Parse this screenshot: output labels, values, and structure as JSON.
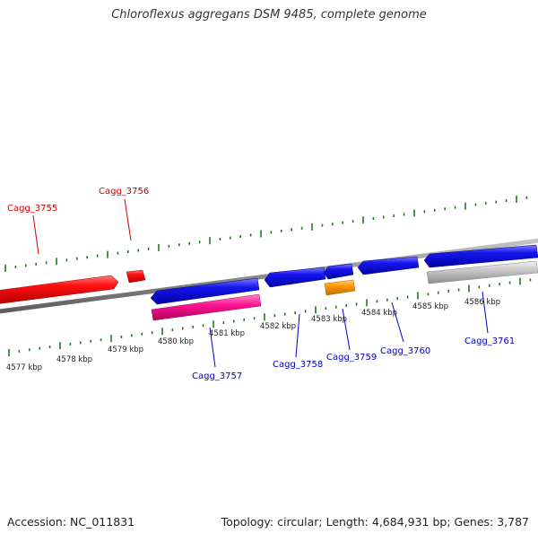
{
  "title": "Chloroflexus aggregans DSM 9485, complete genome",
  "footer": {
    "accession": "Accession: NC_011831",
    "summary": "Topology: circular; Length: 4,684,931 bp; Genes: 3,787"
  },
  "colors": {
    "backbone": "#8c8c8c",
    "ticks": "#1e7a1e",
    "forward_label": "#d40000",
    "reverse_label": "#0000c8",
    "forward_gene": "#ff0000",
    "reverse_gene": "#1414e6",
    "pink_feature": "#ff1493",
    "orange_feature": "#ff9900",
    "gray_feature": "#c0c0c0"
  },
  "scale": {
    "unit": "kbp",
    "labels": [
      "4577 kbp",
      "4578 kbp",
      "4579 kbp",
      "4580 kbp",
      "4581 kbp",
      "4582 kbp",
      "4583 kbp",
      "4584 kbp",
      "4585 kbp",
      "4586 kbp"
    ]
  },
  "genes": [
    {
      "name": "Cagg_3755",
      "strand": "forward"
    },
    {
      "name": "Cagg_3756",
      "strand": "forward"
    },
    {
      "name": "Cagg_3757",
      "strand": "reverse"
    },
    {
      "name": "Cagg_3758",
      "strand": "reverse"
    },
    {
      "name": "Cagg_3759",
      "strand": "reverse"
    },
    {
      "name": "Cagg_3760",
      "strand": "reverse"
    },
    {
      "name": "Cagg_3761",
      "strand": "reverse"
    }
  ]
}
